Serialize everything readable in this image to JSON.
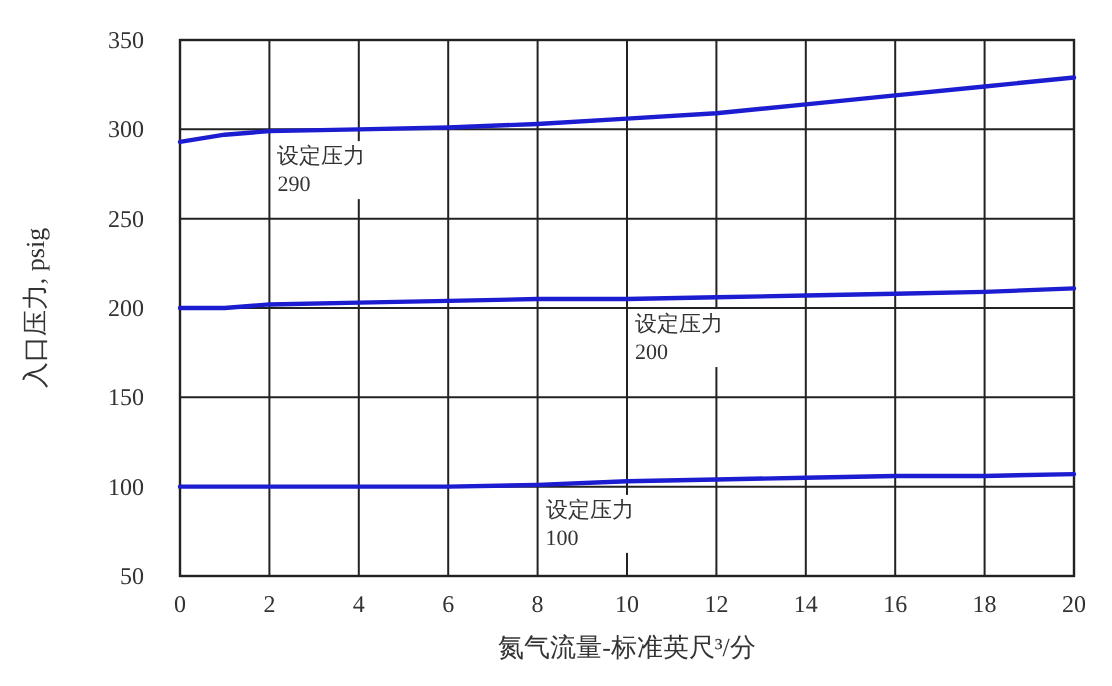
{
  "chart_data": {
    "type": "line",
    "xlabel": "氮气流量-标准英尺³/分",
    "ylabel": "入口压力, psig",
    "x": [
      0,
      1,
      2,
      4,
      6,
      8,
      10,
      12,
      14,
      16,
      18,
      20
    ],
    "series": [
      {
        "color": "#1c1cd0",
        "values": [
          293,
          297,
          299,
          300,
          301,
          303,
          306,
          309,
          314,
          319,
          324,
          329
        ]
      },
      {
        "color": "#1c1cd0",
        "values": [
          200,
          200,
          202,
          203,
          204,
          205,
          205,
          206,
          207,
          208,
          209,
          211
        ]
      },
      {
        "color": "#1c1cd0",
        "values": [
          100,
          100,
          100,
          100,
          100,
          101,
          103,
          104,
          105,
          106,
          106,
          107
        ]
      }
    ],
    "xlim": [
      0,
      20
    ],
    "xticks": [
      0,
      2,
      4,
      6,
      8,
      10,
      12,
      14,
      16,
      18,
      20
    ],
    "ylim": [
      50,
      350
    ],
    "yticks": [
      50,
      100,
      150,
      200,
      250,
      300,
      350
    ],
    "grid": true,
    "marker": "none",
    "line_style": "solid",
    "annotations": [
      {
        "text": "设定压力\n290",
        "x": 2,
        "y": 299
      },
      {
        "text": "设定压力\n200",
        "x": 10,
        "y": 205
      },
      {
        "text": "设定压力\n100",
        "x": 8,
        "y": 101
      }
    ]
  }
}
